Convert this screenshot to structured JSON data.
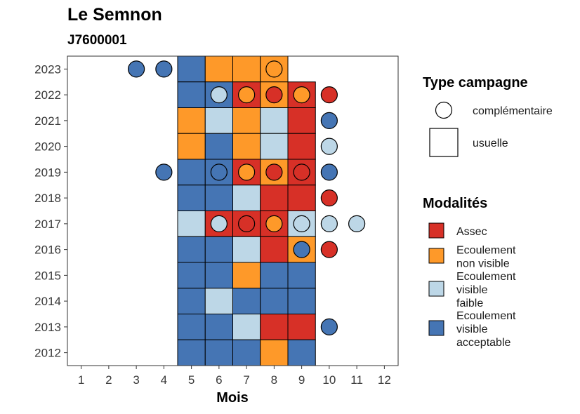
{
  "chart_data": {
    "type": "heatmap",
    "title": "Le Semnon",
    "subtitle": "J7600001",
    "xlabel": "Mois",
    "ylabel": "",
    "x_ticks": [
      1,
      2,
      3,
      4,
      5,
      6,
      7,
      8,
      9,
      10,
      11,
      12
    ],
    "y_ticks": [
      2012,
      2013,
      2014,
      2015,
      2016,
      2017,
      2018,
      2019,
      2020,
      2021,
      2022,
      2023
    ],
    "xlim": [
      0.5,
      12.5
    ],
    "ylim": [
      2011.5,
      2023.5
    ],
    "grid": false,
    "colors": {
      "Assec": "#d73027",
      "Ecoulement non visible": "#fe9929",
      "Ecoulement visible faible": "#bdd7e7",
      "Ecoulement visible acceptable": "#4575b4"
    },
    "legend_type": {
      "title": "Type campagne",
      "items": [
        {
          "label": "complémentaire",
          "shape": "circle"
        },
        {
          "label": "usuelle",
          "shape": "square"
        }
      ]
    },
    "legend_modalites": {
      "title": "Modalités",
      "items": [
        {
          "key": "Assec",
          "lines": [
            "Assec"
          ]
        },
        {
          "key": "Ecoulement non visible",
          "lines": [
            "Ecoulement",
            "non visible"
          ]
        },
        {
          "key": "Ecoulement visible faible",
          "lines": [
            "Ecoulement",
            "visible",
            "faible"
          ]
        },
        {
          "key": "Ecoulement visible acceptable",
          "lines": [
            "Ecoulement",
            "visible",
            "acceptable"
          ]
        }
      ]
    },
    "usuelle": [
      {
        "year": 2023,
        "month": 5,
        "modalite": "Ecoulement visible acceptable"
      },
      {
        "year": 2023,
        "month": 6,
        "modalite": "Ecoulement non visible"
      },
      {
        "year": 2023,
        "month": 7,
        "modalite": "Ecoulement non visible"
      },
      {
        "year": 2023,
        "month": 8,
        "modalite": "Ecoulement non visible"
      },
      {
        "year": 2022,
        "month": 5,
        "modalite": "Ecoulement visible acceptable"
      },
      {
        "year": 2022,
        "month": 6,
        "modalite": "Ecoulement visible acceptable"
      },
      {
        "year": 2022,
        "month": 7,
        "modalite": "Assec"
      },
      {
        "year": 2022,
        "month": 8,
        "modalite": "Ecoulement non visible"
      },
      {
        "year": 2022,
        "month": 9,
        "modalite": "Assec"
      },
      {
        "year": 2021,
        "month": 5,
        "modalite": "Ecoulement non visible"
      },
      {
        "year": 2021,
        "month": 6,
        "modalite": "Ecoulement visible faible"
      },
      {
        "year": 2021,
        "month": 7,
        "modalite": "Ecoulement non visible"
      },
      {
        "year": 2021,
        "month": 8,
        "modalite": "Ecoulement visible faible"
      },
      {
        "year": 2021,
        "month": 9,
        "modalite": "Assec"
      },
      {
        "year": 2020,
        "month": 5,
        "modalite": "Ecoulement non visible"
      },
      {
        "year": 2020,
        "month": 6,
        "modalite": "Ecoulement visible acceptable"
      },
      {
        "year": 2020,
        "month": 7,
        "modalite": "Ecoulement non visible"
      },
      {
        "year": 2020,
        "month": 8,
        "modalite": "Ecoulement visible faible"
      },
      {
        "year": 2020,
        "month": 9,
        "modalite": "Assec"
      },
      {
        "year": 2019,
        "month": 5,
        "modalite": "Ecoulement visible acceptable"
      },
      {
        "year": 2019,
        "month": 6,
        "modalite": "Ecoulement visible acceptable"
      },
      {
        "year": 2019,
        "month": 7,
        "modalite": "Assec"
      },
      {
        "year": 2019,
        "month": 8,
        "modalite": "Ecoulement non visible"
      },
      {
        "year": 2019,
        "month": 9,
        "modalite": "Assec"
      },
      {
        "year": 2018,
        "month": 5,
        "modalite": "Ecoulement visible acceptable"
      },
      {
        "year": 2018,
        "month": 6,
        "modalite": "Ecoulement visible acceptable"
      },
      {
        "year": 2018,
        "month": 7,
        "modalite": "Ecoulement visible faible"
      },
      {
        "year": 2018,
        "month": 8,
        "modalite": "Assec"
      },
      {
        "year": 2018,
        "month": 9,
        "modalite": "Assec"
      },
      {
        "year": 2017,
        "month": 5,
        "modalite": "Ecoulement visible faible"
      },
      {
        "year": 2017,
        "month": 6,
        "modalite": "Assec"
      },
      {
        "year": 2017,
        "month": 7,
        "modalite": "Assec"
      },
      {
        "year": 2017,
        "month": 8,
        "modalite": "Assec"
      },
      {
        "year": 2017,
        "month": 9,
        "modalite": "Ecoulement visible faible"
      },
      {
        "year": 2016,
        "month": 5,
        "modalite": "Ecoulement visible acceptable"
      },
      {
        "year": 2016,
        "month": 6,
        "modalite": "Ecoulement visible acceptable"
      },
      {
        "year": 2016,
        "month": 7,
        "modalite": "Ecoulement visible faible"
      },
      {
        "year": 2016,
        "month": 8,
        "modalite": "Assec"
      },
      {
        "year": 2016,
        "month": 9,
        "modalite": "Ecoulement non visible"
      },
      {
        "year": 2015,
        "month": 5,
        "modalite": "Ecoulement visible acceptable"
      },
      {
        "year": 2015,
        "month": 6,
        "modalite": "Ecoulement visible acceptable"
      },
      {
        "year": 2015,
        "month": 7,
        "modalite": "Ecoulement non visible"
      },
      {
        "year": 2015,
        "month": 8,
        "modalite": "Ecoulement visible acceptable"
      },
      {
        "year": 2015,
        "month": 9,
        "modalite": "Ecoulement visible acceptable"
      },
      {
        "year": 2014,
        "month": 5,
        "modalite": "Ecoulement visible acceptable"
      },
      {
        "year": 2014,
        "month": 6,
        "modalite": "Ecoulement visible faible"
      },
      {
        "year": 2014,
        "month": 7,
        "modalite": "Ecoulement visible acceptable"
      },
      {
        "year": 2014,
        "month": 8,
        "modalite": "Ecoulement visible acceptable"
      },
      {
        "year": 2014,
        "month": 9,
        "modalite": "Ecoulement visible acceptable"
      },
      {
        "year": 2013,
        "month": 5,
        "modalite": "Ecoulement visible acceptable"
      },
      {
        "year": 2013,
        "month": 6,
        "modalite": "Ecoulement visible acceptable"
      },
      {
        "year": 2013,
        "month": 7,
        "modalite": "Ecoulement visible faible"
      },
      {
        "year": 2013,
        "month": 8,
        "modalite": "Assec"
      },
      {
        "year": 2013,
        "month": 9,
        "modalite": "Assec"
      },
      {
        "year": 2012,
        "month": 5,
        "modalite": "Ecoulement visible acceptable"
      },
      {
        "year": 2012,
        "month": 6,
        "modalite": "Ecoulement visible acceptable"
      },
      {
        "year": 2012,
        "month": 7,
        "modalite": "Ecoulement visible acceptable"
      },
      {
        "year": 2012,
        "month": 8,
        "modalite": "Ecoulement non visible"
      },
      {
        "year": 2012,
        "month": 9,
        "modalite": "Ecoulement visible acceptable"
      }
    ],
    "complementaire": [
      {
        "year": 2023,
        "month": 3,
        "modalite": "Ecoulement visible acceptable"
      },
      {
        "year": 2023,
        "month": 4,
        "modalite": "Ecoulement visible acceptable"
      },
      {
        "year": 2023,
        "month": 8,
        "modalite": "Ecoulement non visible"
      },
      {
        "year": 2022,
        "month": 6,
        "modalite": "Ecoulement visible faible"
      },
      {
        "year": 2022,
        "month": 7,
        "modalite": "Ecoulement non visible"
      },
      {
        "year": 2022,
        "month": 8,
        "modalite": "Assec"
      },
      {
        "year": 2022,
        "month": 9,
        "modalite": "Ecoulement non visible"
      },
      {
        "year": 2022,
        "month": 10,
        "modalite": "Assec"
      },
      {
        "year": 2021,
        "month": 10,
        "modalite": "Ecoulement visible acceptable"
      },
      {
        "year": 2020,
        "month": 10,
        "modalite": "Ecoulement visible faible"
      },
      {
        "year": 2019,
        "month": 4,
        "modalite": "Ecoulement visible acceptable"
      },
      {
        "year": 2019,
        "month": 6,
        "modalite": "Ecoulement visible acceptable"
      },
      {
        "year": 2019,
        "month": 7,
        "modalite": "Ecoulement non visible"
      },
      {
        "year": 2019,
        "month": 8,
        "modalite": "Assec"
      },
      {
        "year": 2019,
        "month": 9,
        "modalite": "Assec"
      },
      {
        "year": 2019,
        "month": 10,
        "modalite": "Ecoulement visible acceptable"
      },
      {
        "year": 2018,
        "month": 10,
        "modalite": "Assec"
      },
      {
        "year": 2017,
        "month": 6,
        "modalite": "Ecoulement visible faible"
      },
      {
        "year": 2017,
        "month": 7,
        "modalite": "Assec"
      },
      {
        "year": 2017,
        "month": 8,
        "modalite": "Ecoulement non visible"
      },
      {
        "year": 2017,
        "month": 9,
        "modalite": "Ecoulement visible faible"
      },
      {
        "year": 2017,
        "month": 10,
        "modalite": "Ecoulement visible faible"
      },
      {
        "year": 2017,
        "month": 11,
        "modalite": "Ecoulement visible faible"
      },
      {
        "year": 2016,
        "month": 9,
        "modalite": "Ecoulement visible acceptable"
      },
      {
        "year": 2016,
        "month": 10,
        "modalite": "Assec"
      },
      {
        "year": 2013,
        "month": 10,
        "modalite": "Ecoulement visible acceptable"
      }
    ]
  }
}
